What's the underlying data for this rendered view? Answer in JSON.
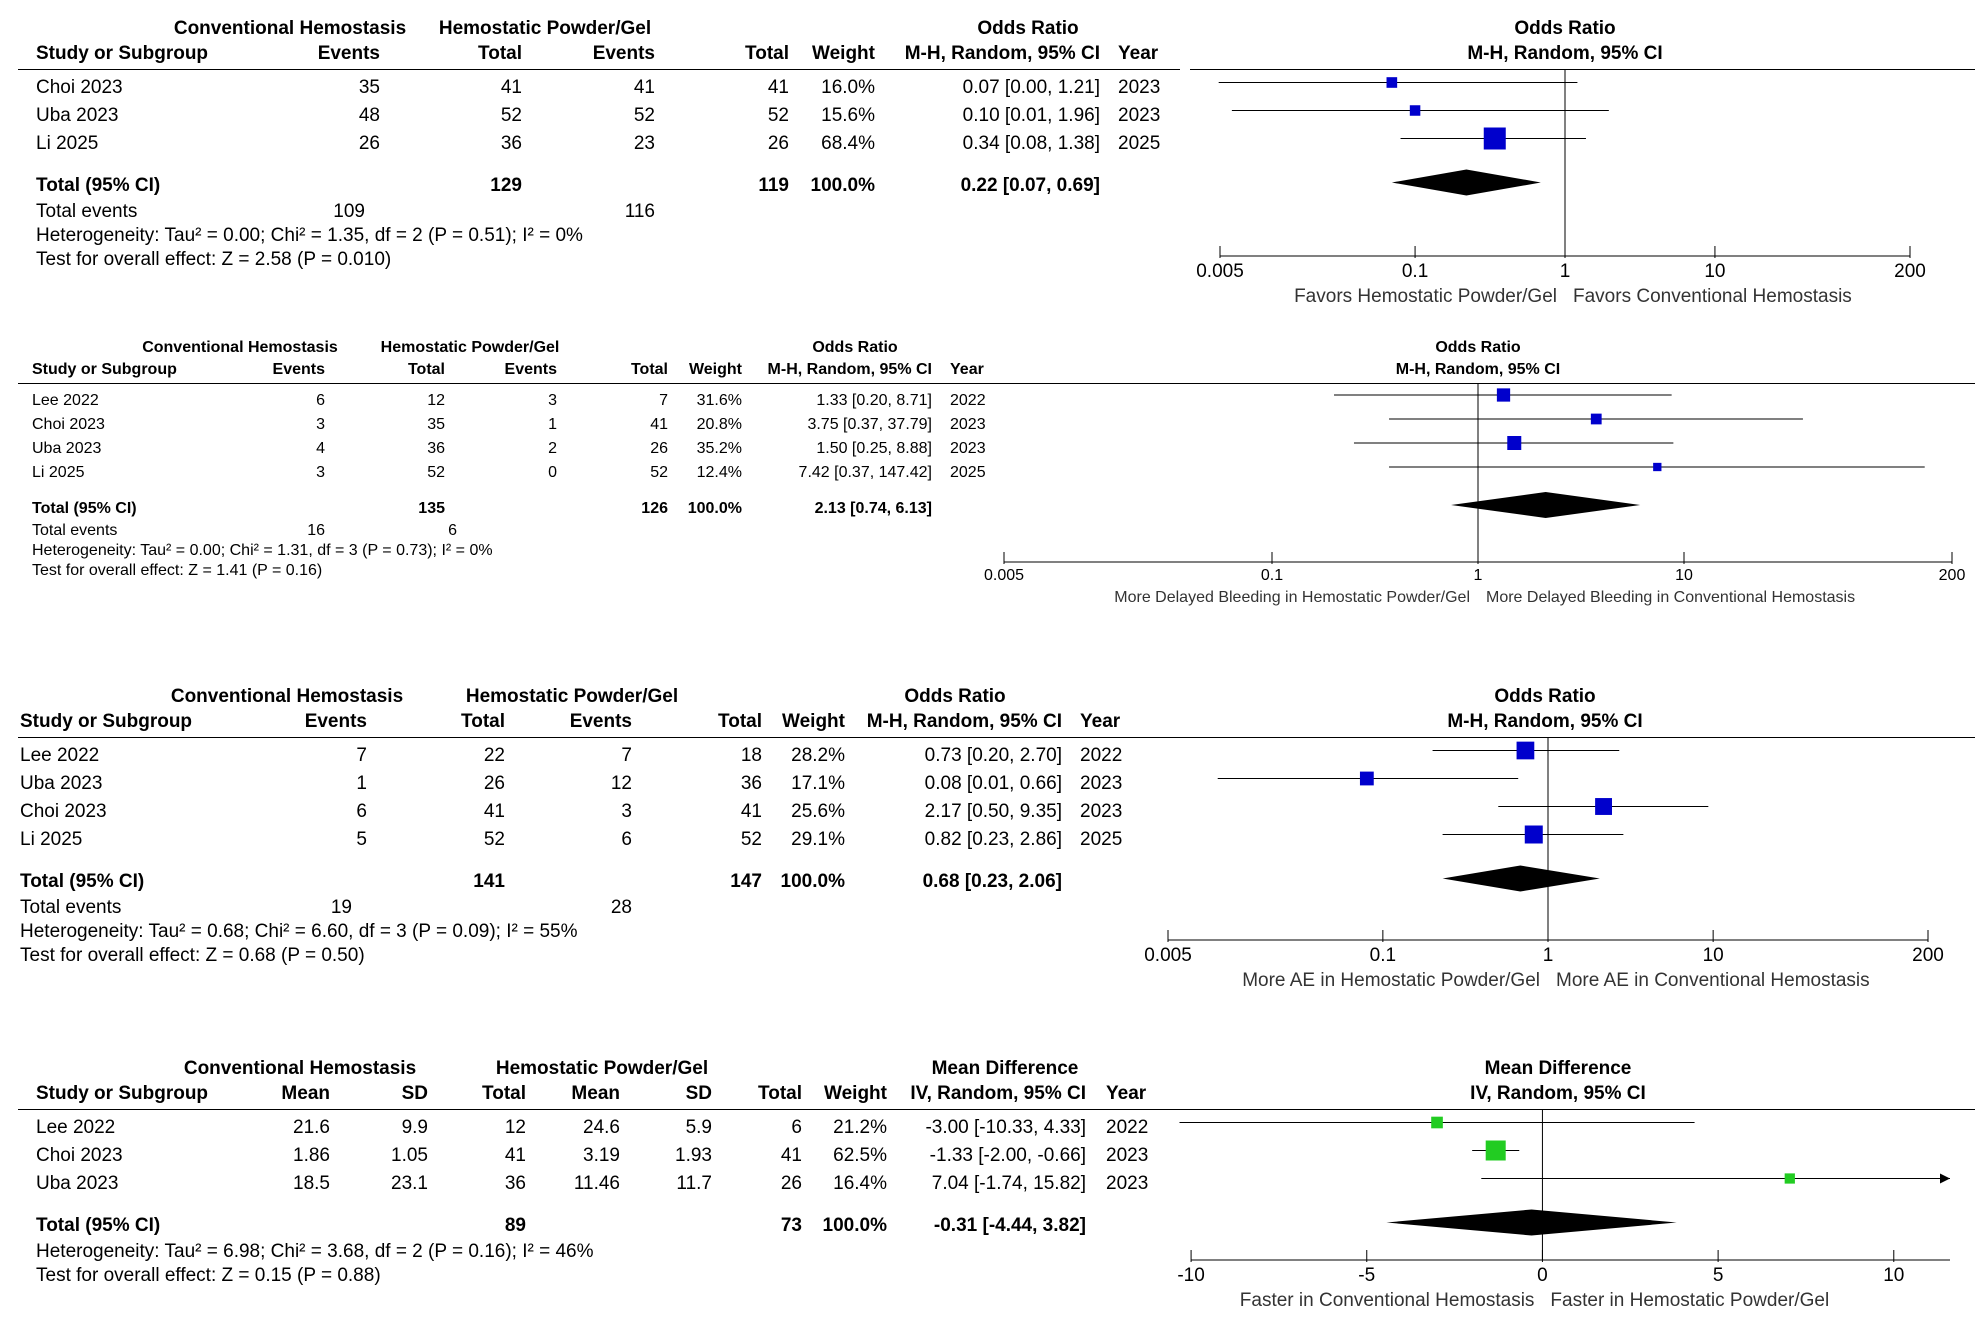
{
  "chart_data": [
    {
      "type": "forest",
      "measure": "Odds Ratio",
      "method": "M-H, Random, 95% CI",
      "group1": "Conventional Hemostasis",
      "group2": "Hemostatic Powder/Gel",
      "columns": [
        "Study or Subgroup",
        "Events",
        "Total",
        "Events",
        "Total",
        "Weight",
        "M-H, Random, 95% CI",
        "Year"
      ],
      "studies": [
        {
          "name": "Choi 2023",
          "g1": [
            "35",
            "41"
          ],
          "g2": [
            "41",
            "41"
          ],
          "weight": "16.0%",
          "ci_text": "0.07 [0.00, 1.21]",
          "year": "2023",
          "est": 0.07,
          "lo": 0.004,
          "hi": 1.21,
          "w": 16.0
        },
        {
          "name": "Uba 2023",
          "g1": [
            "48",
            "52"
          ],
          "g2": [
            "52",
            "52"
          ],
          "weight": "15.6%",
          "ci_text": "0.10 [0.01, 1.96]",
          "year": "2023",
          "est": 0.1,
          "lo": 0.006,
          "hi": 1.96,
          "w": 15.6
        },
        {
          "name": "Li 2025",
          "g1": [
            "26",
            "36"
          ],
          "g2": [
            "23",
            "26"
          ],
          "weight": "68.4%",
          "ci_text": "0.34 [0.08, 1.38]",
          "year": "2025",
          "est": 0.34,
          "lo": 0.08,
          "hi": 1.38,
          "w": 68.4
        }
      ],
      "total": {
        "label": "Total (95% CI)",
        "g1": [
          "",
          "129"
        ],
        "g2": [
          "",
          "119"
        ],
        "weight": "100.0%",
        "ci_text": "0.22 [0.07, 0.69]",
        "est": 0.22,
        "lo": 0.07,
        "hi": 0.69
      },
      "events": {
        "label": "Total events",
        "g1": "109",
        "g2": "116"
      },
      "heterogeneity": "Heterogeneity: Tau² = 0.00; Chi² = 1.35, df = 2 (P = 0.51); I² = 0%",
      "overall": "Test for overall effect: Z = 2.58 (P = 0.010)",
      "scale": "log",
      "ticks": [
        0.005,
        0.1,
        1,
        10,
        200
      ],
      "tick_labels": [
        "0.005",
        "0.1",
        "1",
        "10",
        "200"
      ],
      "favors_left": "Favors Hemostatic Powder/Gel",
      "favors_right": "Favors Conventional Hemostasis",
      "colors": {
        "study": "#0000cc",
        "diamond": "#000000"
      }
    },
    {
      "type": "forest",
      "measure": "Odds Ratio",
      "method": "M-H, Random, 95% CI",
      "group1": "Conventional Hemostasis",
      "group2": "Hemostatic Powder/Gel",
      "columns": [
        "Study or Subgroup",
        "Events",
        "Total",
        "Events",
        "Total",
        "Weight",
        "M-H, Random, 95% CI",
        "Year"
      ],
      "studies": [
        {
          "name": "Lee 2022",
          "g1": [
            "6",
            "12"
          ],
          "g2": [
            "3",
            "7"
          ],
          "weight": "31.6%",
          "ci_text": "1.33 [0.20, 8.71]",
          "year": "2022",
          "est": 1.33,
          "lo": 0.2,
          "hi": 8.71,
          "w": 31.6
        },
        {
          "name": "Choi 2023",
          "g1": [
            "3",
            "35"
          ],
          "g2": [
            "1",
            "41"
          ],
          "weight": "20.8%",
          "ci_text": "3.75 [0.37, 37.79]",
          "year": "2023",
          "est": 3.75,
          "lo": 0.37,
          "hi": 37.79,
          "w": 20.8
        },
        {
          "name": "Uba 2023",
          "g1": [
            "4",
            "36"
          ],
          "g2": [
            "2",
            "26"
          ],
          "weight": "35.2%",
          "ci_text": "1.50 [0.25, 8.88]",
          "year": "2023",
          "est": 1.5,
          "lo": 0.25,
          "hi": 8.88,
          "w": 35.2
        },
        {
          "name": "Li 2025",
          "g1": [
            "3",
            "52"
          ],
          "g2": [
            "0",
            "52"
          ],
          "weight": "12.4%",
          "ci_text": "7.42 [0.37, 147.42]",
          "year": "2025",
          "est": 7.42,
          "lo": 0.37,
          "hi": 147.42,
          "w": 12.4
        }
      ],
      "total": {
        "label": "Total (95% CI)",
        "g1": [
          "",
          "135"
        ],
        "g2": [
          "",
          "126"
        ],
        "weight": "100.0%",
        "ci_text": "2.13 [0.74, 6.13]",
        "est": 2.13,
        "lo": 0.74,
        "hi": 6.13
      },
      "events": {
        "label": "Total events",
        "g1": "16",
        "g2": "6"
      },
      "heterogeneity": "Heterogeneity: Tau² = 0.00; Chi² = 1.31, df = 3 (P = 0.73); I² = 0%",
      "overall": "Test for overall effect: Z = 1.41 (P = 0.16)",
      "scale": "log",
      "ticks": [
        0.005,
        0.1,
        1,
        10,
        200
      ],
      "tick_labels": [
        "0.005",
        "0.1",
        "1",
        "10",
        "200"
      ],
      "favors_left": "More Delayed Bleeding in Hemostatic Powder/Gel",
      "favors_right": "More Delayed Bleeding in Conventional Hemostasis",
      "colors": {
        "study": "#0000cc",
        "diamond": "#000000"
      }
    },
    {
      "type": "forest",
      "measure": "Odds Ratio",
      "method": "M-H, Random, 95% CI",
      "group1": "Conventional Hemostasis",
      "group2": "Hemostatic Powder/Gel",
      "columns": [
        "Study or Subgroup",
        "Events",
        "Total",
        "Events",
        "Total",
        "Weight",
        "M-H, Random, 95% CI",
        "Year"
      ],
      "studies": [
        {
          "name": "Lee 2022",
          "g1": [
            "7",
            "22"
          ],
          "g2": [
            "7",
            "18"
          ],
          "weight": "28.2%",
          "ci_text": "0.73 [0.20, 2.70]",
          "year": "2022",
          "est": 0.73,
          "lo": 0.2,
          "hi": 2.7,
          "w": 28.2
        },
        {
          "name": "Uba 2023",
          "g1": [
            "1",
            "26"
          ],
          "g2": [
            "12",
            "36"
          ],
          "weight": "17.1%",
          "ci_text": "0.08 [0.01, 0.66]",
          "year": "2023",
          "est": 0.08,
          "lo": 0.01,
          "hi": 0.66,
          "w": 17.1
        },
        {
          "name": "Choi 2023",
          "g1": [
            "6",
            "41"
          ],
          "g2": [
            "3",
            "41"
          ],
          "weight": "25.6%",
          "ci_text": "2.17 [0.50, 9.35]",
          "year": "2023",
          "est": 2.17,
          "lo": 0.5,
          "hi": 9.35,
          "w": 25.6
        },
        {
          "name": "Li 2025",
          "g1": [
            "5",
            "52"
          ],
          "g2": [
            "6",
            "52"
          ],
          "weight": "29.1%",
          "ci_text": "0.82 [0.23, 2.86]",
          "year": "2025",
          "est": 0.82,
          "lo": 0.23,
          "hi": 2.86,
          "w": 29.1
        }
      ],
      "total": {
        "label": "Total (95% CI)",
        "g1": [
          "",
          "141"
        ],
        "g2": [
          "",
          "147"
        ],
        "weight": "100.0%",
        "ci_text": "0.68 [0.23, 2.06]",
        "est": 0.68,
        "lo": 0.23,
        "hi": 2.06
      },
      "events": {
        "label": "Total events",
        "g1": "19",
        "g2": "28"
      },
      "heterogeneity": "Heterogeneity: Tau² = 0.68; Chi² = 6.60, df = 3 (P = 0.09); I² = 55%",
      "overall": "Test for overall effect: Z = 0.68 (P = 0.50)",
      "scale": "log",
      "ticks": [
        0.005,
        0.1,
        1,
        10,
        200
      ],
      "tick_labels": [
        "0.005",
        "0.1",
        "1",
        "10",
        "200"
      ],
      "favors_left": "More AE in Hemostatic Powder/Gel",
      "favors_right": "More AE in Conventional Hemostasis",
      "colors": {
        "study": "#0000cc",
        "diamond": "#000000"
      }
    },
    {
      "type": "forest",
      "measure": "Mean Difference",
      "method": "IV, Random, 95% CI",
      "group1": "Conventional Hemostasis",
      "group2": "Hemostatic Powder/Gel",
      "columns": [
        "Study or Subgroup",
        "Mean",
        "SD",
        "Total",
        "Mean",
        "SD",
        "Total",
        "Weight",
        "IV, Random, 95% CI",
        "Year"
      ],
      "studies": [
        {
          "name": "Lee 2022",
          "g1": [
            "21.6",
            "9.9",
            "12"
          ],
          "g2": [
            "24.6",
            "5.9",
            "6"
          ],
          "weight": "21.2%",
          "ci_text": "-3.00 [-10.33, 4.33]",
          "year": "2022",
          "est": -3.0,
          "lo": -10.33,
          "hi": 4.33,
          "w": 21.2
        },
        {
          "name": "Choi 2023",
          "g1": [
            "1.86",
            "1.05",
            "41"
          ],
          "g2": [
            "3.19",
            "1.93",
            "41"
          ],
          "weight": "62.5%",
          "ci_text": "-1.33 [-2.00, -0.66]",
          "year": "2023",
          "est": -1.33,
          "lo": -2.0,
          "hi": -0.66,
          "w": 62.5
        },
        {
          "name": "Uba 2023",
          "g1": [
            "18.5",
            "23.1",
            "36"
          ],
          "g2": [
            "11.46",
            "11.7",
            "26"
          ],
          "weight": "16.4%",
          "ci_text": "7.04 [-1.74, 15.82]",
          "year": "2023",
          "est": 7.04,
          "lo": -1.74,
          "hi": 15.82,
          "w": 16.4
        }
      ],
      "total": {
        "label": "Total (95% CI)",
        "g1": [
          "",
          "",
          "89"
        ],
        "g2": [
          "",
          "",
          "73"
        ],
        "weight": "100.0%",
        "ci_text": "-0.31 [-4.44, 3.82]",
        "est": -0.31,
        "lo": -4.44,
        "hi": 3.82
      },
      "heterogeneity": "Heterogeneity: Tau² = 6.98; Chi² = 3.68, df = 2 (P = 0.16); I² = 46%",
      "overall": "Test for overall effect: Z = 0.15 (P = 0.88)",
      "scale": "linear",
      "ticks": [
        -10,
        -5,
        0,
        5,
        10
      ],
      "tick_labels": [
        "-10",
        "-5",
        "0",
        "5",
        "10"
      ],
      "favors_left": "Faster in Conventional Hemostasis",
      "favors_right": "Faster in Hemostatic Powder/Gel",
      "colors": {
        "study": "#22cc22",
        "diamond": "#000000"
      }
    }
  ]
}
